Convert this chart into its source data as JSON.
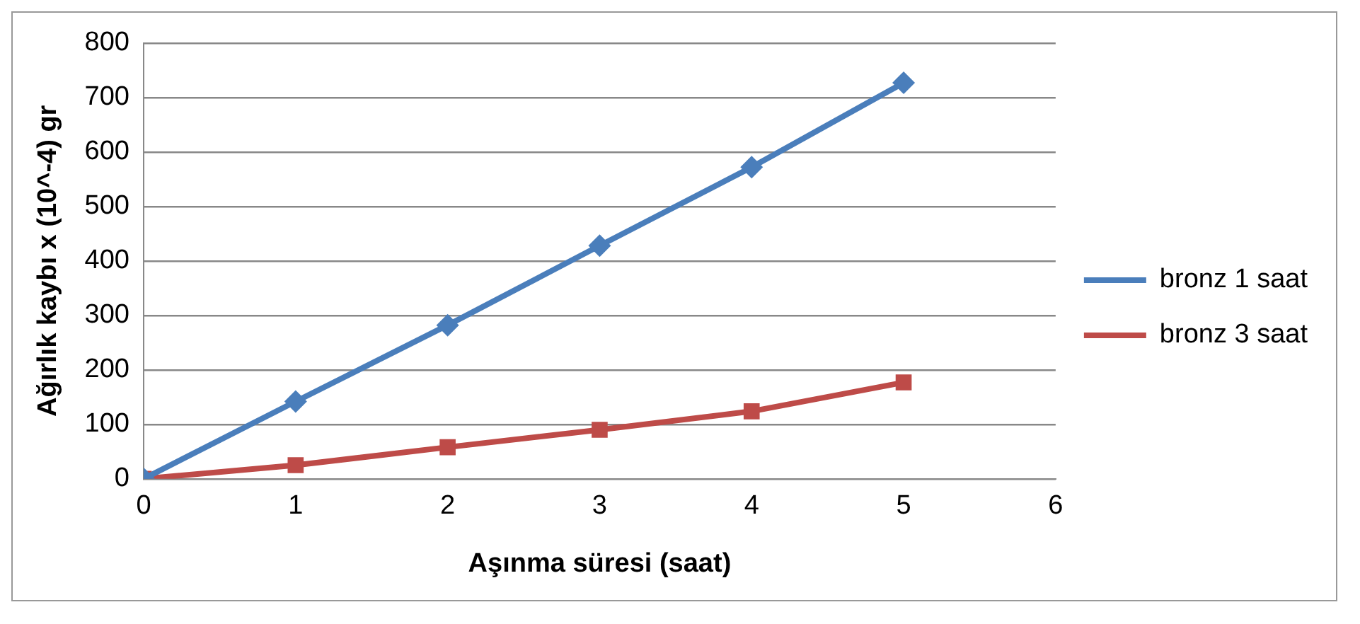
{
  "chart_data": {
    "type": "line",
    "xlabel": "Aşınma süresi (saat)",
    "ylabel": "Ağırlık kaybı x (10^-4) gr",
    "x": [
      0,
      1,
      2,
      3,
      4,
      5
    ],
    "series": [
      {
        "name": "bronz 1 saat",
        "color": "#4a7ebb",
        "values": [
          0,
          142,
          282,
          428,
          572,
          727
        ],
        "marker": "diamond"
      },
      {
        "name": "bronz 3 saat",
        "color": "#be4b48",
        "values": [
          0,
          25,
          58,
          90,
          124,
          177
        ],
        "marker": "square"
      }
    ],
    "xlim": [
      0,
      6
    ],
    "xticks": [
      0,
      1,
      2,
      3,
      4,
      5,
      6
    ],
    "ylim": [
      0,
      800
    ],
    "yticks": [
      0,
      100,
      200,
      300,
      400,
      500,
      600,
      700,
      800
    ],
    "grid": "y",
    "legend": "right",
    "line_style": "solid"
  }
}
